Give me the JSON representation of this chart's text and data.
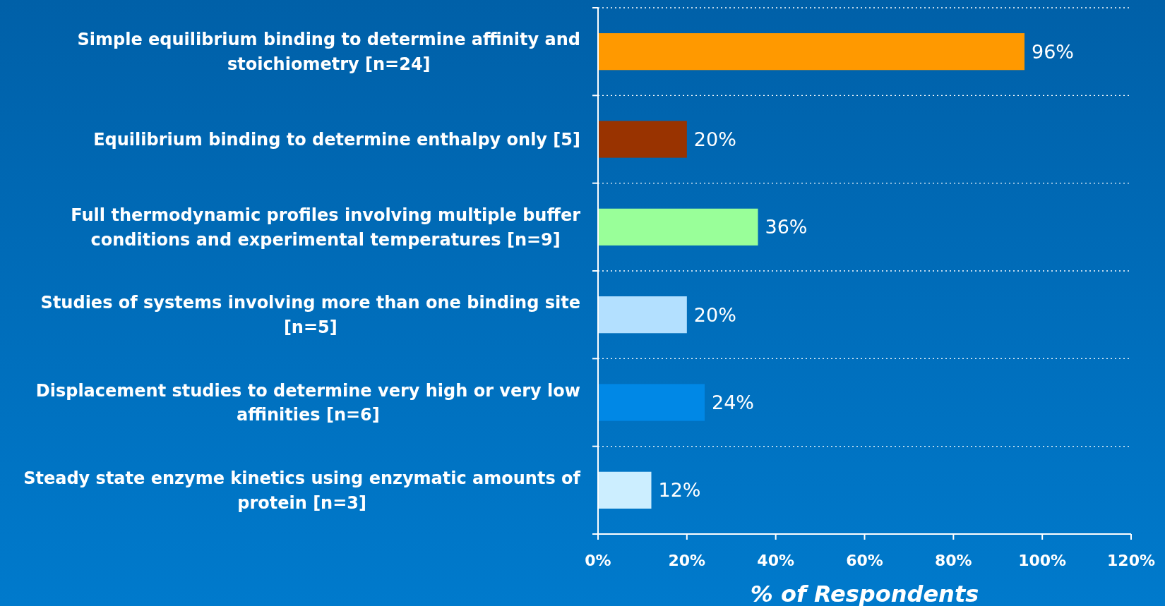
{
  "chart_data": {
    "type": "bar",
    "orientation": "horizontal",
    "categories": [
      "Simple equilibrium binding to determine affinity and stoichiometry [n=24]",
      "Equilibrium binding to determine enthalpy only [5]",
      "Full thermodynamic profiles involving multiple buffer conditions and experimental temperatures [n=9]",
      "Studies of systems involving more than one binding site [n=5]",
      "Displacement studies to determine very high or very low affinities [n=6]",
      "Steady state enzyme kinetics using enzymatic amounts of protein [n=3]"
    ],
    "values": [
      96,
      20,
      36,
      20,
      24,
      12
    ],
    "colors": [
      "#ff9900",
      "#993300",
      "#99ff99",
      "#b3e0ff",
      "#0088e6",
      "#cceeff"
    ],
    "value_labels": [
      "96%",
      "20%",
      "36%",
      "20%",
      "24%",
      "12%"
    ],
    "xlabel": "% of Respondents",
    "xlim": [
      0,
      120
    ],
    "xticks": [
      {
        "value": 0,
        "label": "0%"
      },
      {
        "value": 20,
        "label": "20%"
      },
      {
        "value": 40,
        "label": "40%"
      },
      {
        "value": 60,
        "label": "60%"
      },
      {
        "value": 80,
        "label": "80%"
      },
      {
        "value": 100,
        "label": "100%"
      },
      {
        "value": 120,
        "label": "120%"
      }
    ],
    "grid": "y"
  }
}
